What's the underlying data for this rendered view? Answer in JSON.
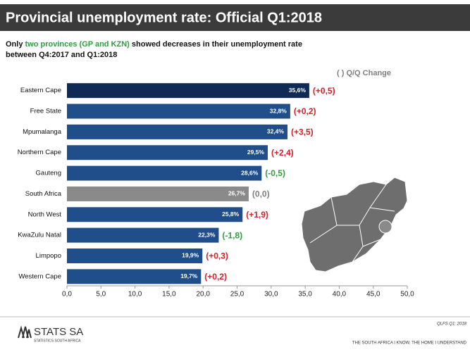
{
  "header": {
    "title": "Provincial unemployment rate: Official Q1:2018"
  },
  "chart_data": {
    "type": "bar",
    "orientation": "horizontal",
    "subtitle": [
      "Only ",
      "two provinces (GP and KZN)",
      " showed decreases in their unemployment rate",
      "between Q4:2017 and Q1:2018"
    ],
    "subtitle_highlight_color": "#2e9e3e",
    "legend": "( )  Q/Q Change",
    "categories": [
      "Eastern Cape",
      "Free State",
      "Mpumalanga",
      "Northern Cape",
      "Gauteng",
      "South Africa",
      "North West",
      "KwaZulu Natal",
      "Limpopo",
      "Western Cape"
    ],
    "values": [
      35.6,
      32.8,
      32.4,
      29.5,
      28.6,
      26.7,
      25.8,
      22.3,
      19.9,
      19.7
    ],
    "value_labels": [
      "35,6%",
      "32,8%",
      "32,4%",
      "29,5%",
      "28,6%",
      "26,7%",
      "25,8%",
      "22,3%",
      "19,9%",
      "19,7%"
    ],
    "colors": [
      "#0f2b55",
      "#1f4e8a",
      "#1f4e8a",
      "#1f4e8a",
      "#1f4e8a",
      "#8a8a8a",
      "#1f4e8a",
      "#1f4e8a",
      "#1f4e8a",
      "#1f4e8a"
    ],
    "change_labels": [
      "(+0,5)",
      "(+0,2)",
      "(+3,5)",
      "(+2,4)",
      "(-0,5)",
      "(0,0)",
      "(+1,9)",
      "(-1,8)",
      "(+0,3)",
      "(+0,2)"
    ],
    "change_colors": [
      "#d0202a",
      "#d0202a",
      "#d0202a",
      "#d0202a",
      "#2e9e3e",
      "#7f7f7f",
      "#d0202a",
      "#2e9e3e",
      "#d0202a",
      "#d0202a"
    ],
    "xlim": [
      0,
      50
    ],
    "xticks": [
      {
        "value": 0,
        "label": "0,0"
      },
      {
        "value": 5,
        "label": "5,0"
      },
      {
        "value": 10,
        "label": "10,0"
      },
      {
        "value": 15,
        "label": "15,0"
      },
      {
        "value": 20,
        "label": "20,0"
      },
      {
        "value": 25,
        "label": "25,0"
      },
      {
        "value": 30,
        "label": "30,0"
      },
      {
        "value": 35,
        "label": "35,0"
      },
      {
        "value": 40,
        "label": "40,0"
      },
      {
        "value": 45,
        "label": "45,0"
      },
      {
        "value": 50,
        "label": "50,0"
      }
    ]
  },
  "footer": {
    "source": "QLFS Q1: 2018",
    "logo": "STATS SA",
    "logo_sub": "STATISTICS SOUTH AFRICA",
    "slogan": "THE SOUTH AFRICA I KNOW, THE HOME I UNDERSTAND"
  }
}
